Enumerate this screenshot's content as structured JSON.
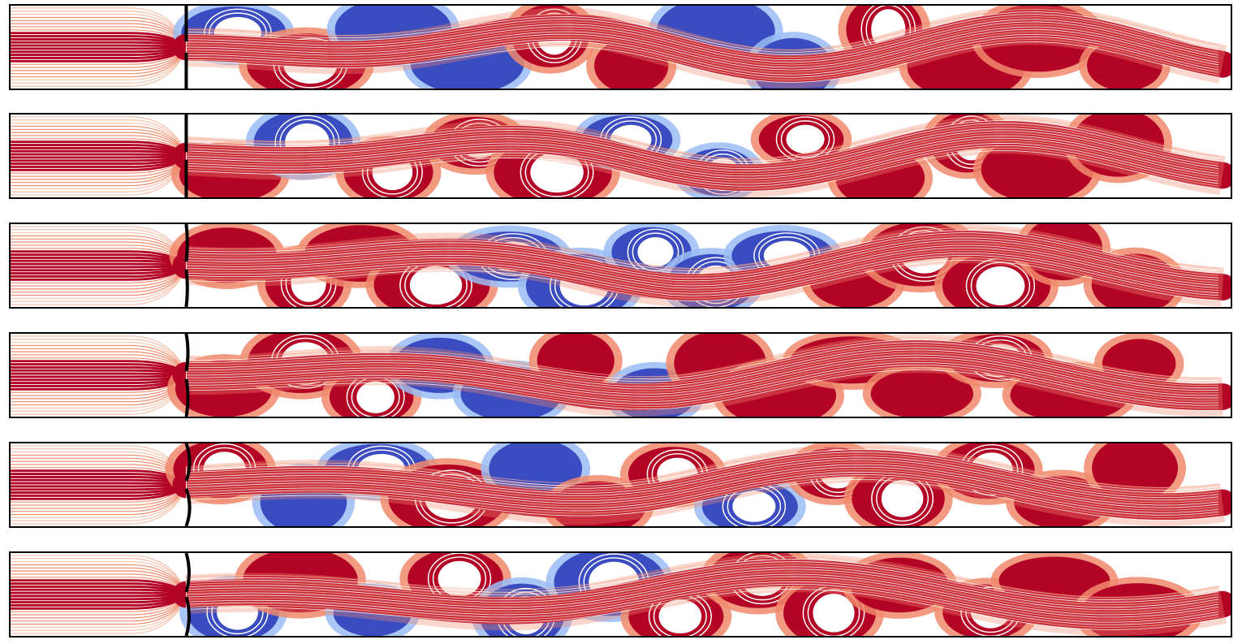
{
  "figure": {
    "panels": [
      {
        "id": "1",
        "membrane_bulge": 0,
        "inlet_gap": "open"
      },
      {
        "id": "2",
        "membrane_bulge": 0,
        "inlet_gap": "narrow"
      },
      {
        "id": "3",
        "membrane_bulge": 0.2,
        "inlet_gap": "narrow"
      },
      {
        "id": "4",
        "membrane_bulge": 0.3,
        "inlet_gap": "narrow"
      },
      {
        "id": "5",
        "membrane_bulge": 0.6,
        "inlet_gap": "narrow"
      },
      {
        "id": "6",
        "membrane_bulge": 0.5,
        "inlet_gap": "very-narrow"
      }
    ],
    "colormap": {
      "positive": "#b40426",
      "positive_light": "#f08a6c",
      "neutral": "#f2f2f2",
      "negative_light": "#9bbcf5",
      "negative": "#3b4cc0"
    },
    "streamline_color": "#ffffff",
    "wall_color": "#000000"
  }
}
